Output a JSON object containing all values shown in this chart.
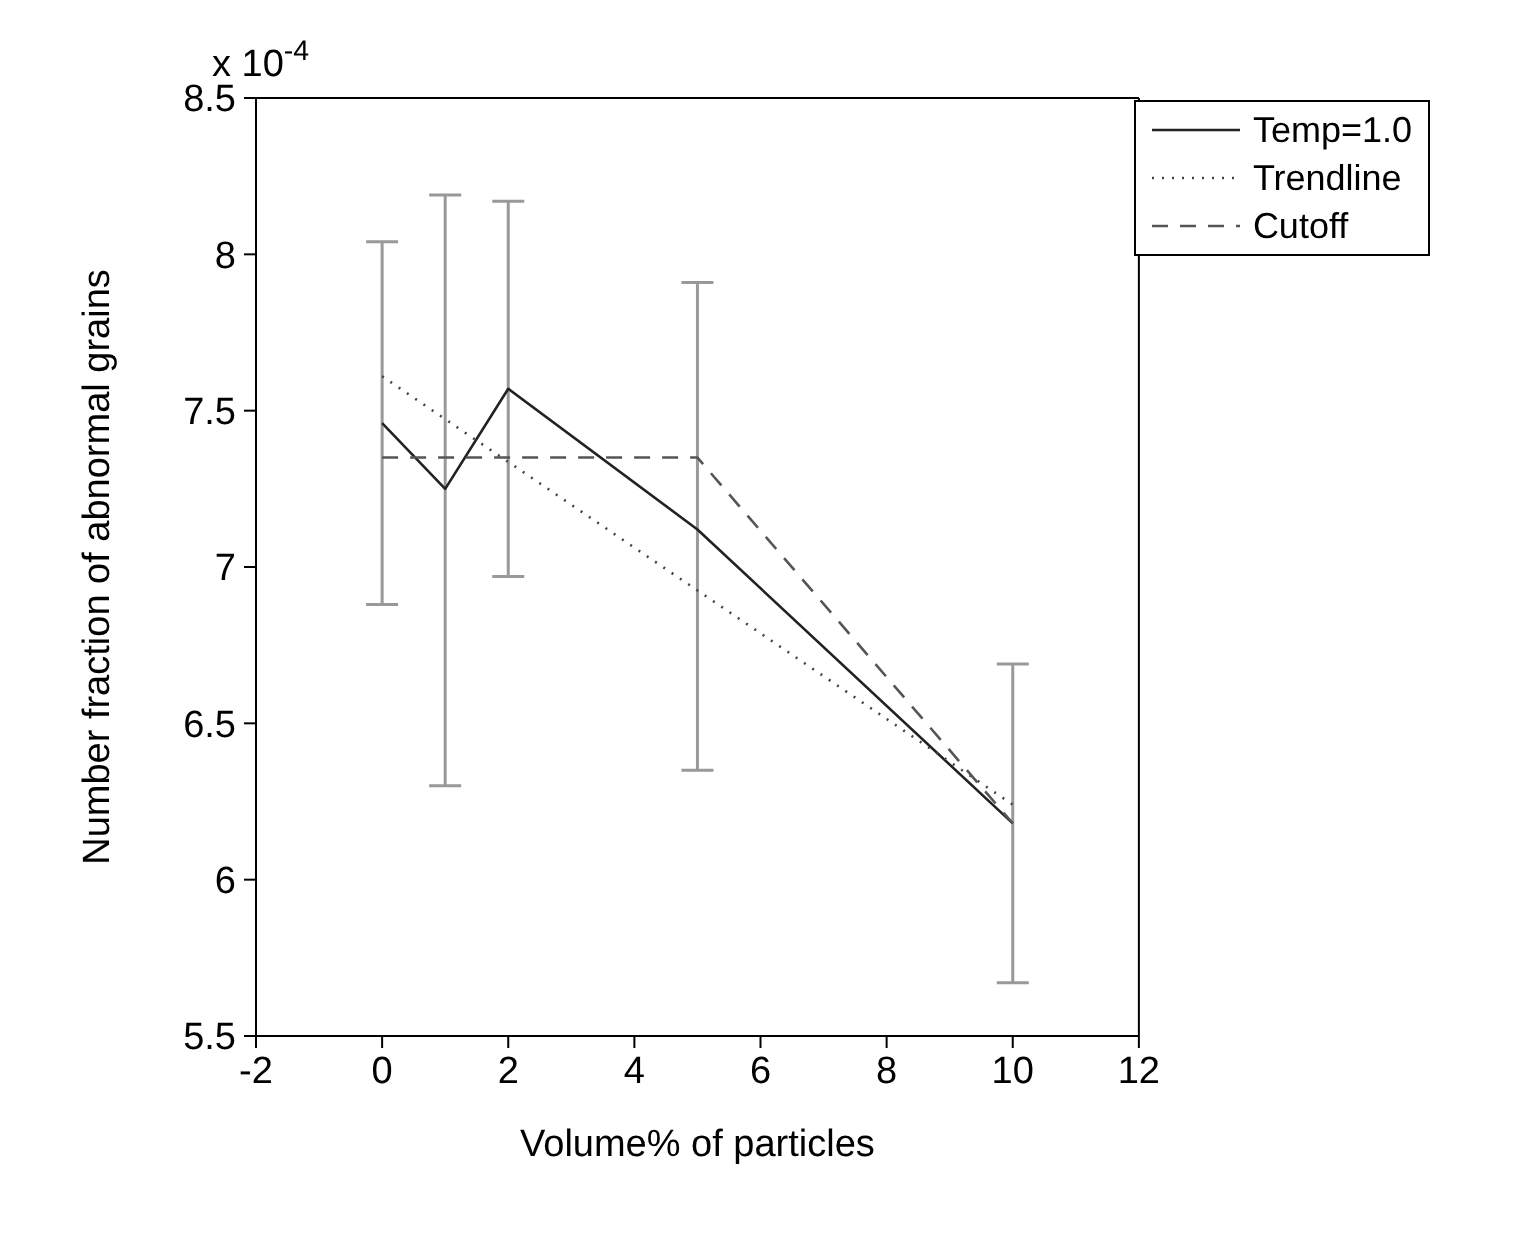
{
  "chart_data": {
    "type": "line",
    "xlabel": "Volume% of particles",
    "ylabel": "Number fraction of abnormal grains",
    "annotations": [
      "x 10$^{-4}$"
    ],
    "xlim": [
      -2,
      12
    ],
    "xticks": [
      -2,
      0,
      2,
      4,
      6,
      8,
      10,
      12
    ],
    "ylim": [
      5.5,
      8.5
    ],
    "yticks": [
      5.5,
      6,
      6.5,
      7,
      7.5,
      8,
      8.5
    ],
    "legend": "top right",
    "grid": false,
    "marker": "none",
    "series": [
      {
        "name": "Temp=1.0",
        "color": "#222222",
        "line_style": "solid",
        "x": [
          0,
          1,
          2,
          5,
          10
        ],
        "values": [
          7.46,
          7.25,
          7.57,
          7.12,
          6.18
        ],
        "errors": [
          [
            6.88,
            8.04
          ],
          [
            6.3,
            8.19
          ],
          [
            6.97,
            8.17
          ],
          [
            6.35,
            7.91
          ],
          [
            5.67,
            6.69
          ]
        ]
      },
      {
        "name": "Trendline",
        "color": "#444444",
        "line_style": "dotted",
        "x": [
          0,
          10
        ],
        "values": [
          7.61,
          6.24
        ]
      },
      {
        "name": "Cutoff",
        "color": "#555555",
        "line_style": "dashed",
        "x": [
          0,
          5,
          10
        ],
        "values": [
          7.35,
          7.35,
          6.18
        ]
      }
    ]
  }
}
